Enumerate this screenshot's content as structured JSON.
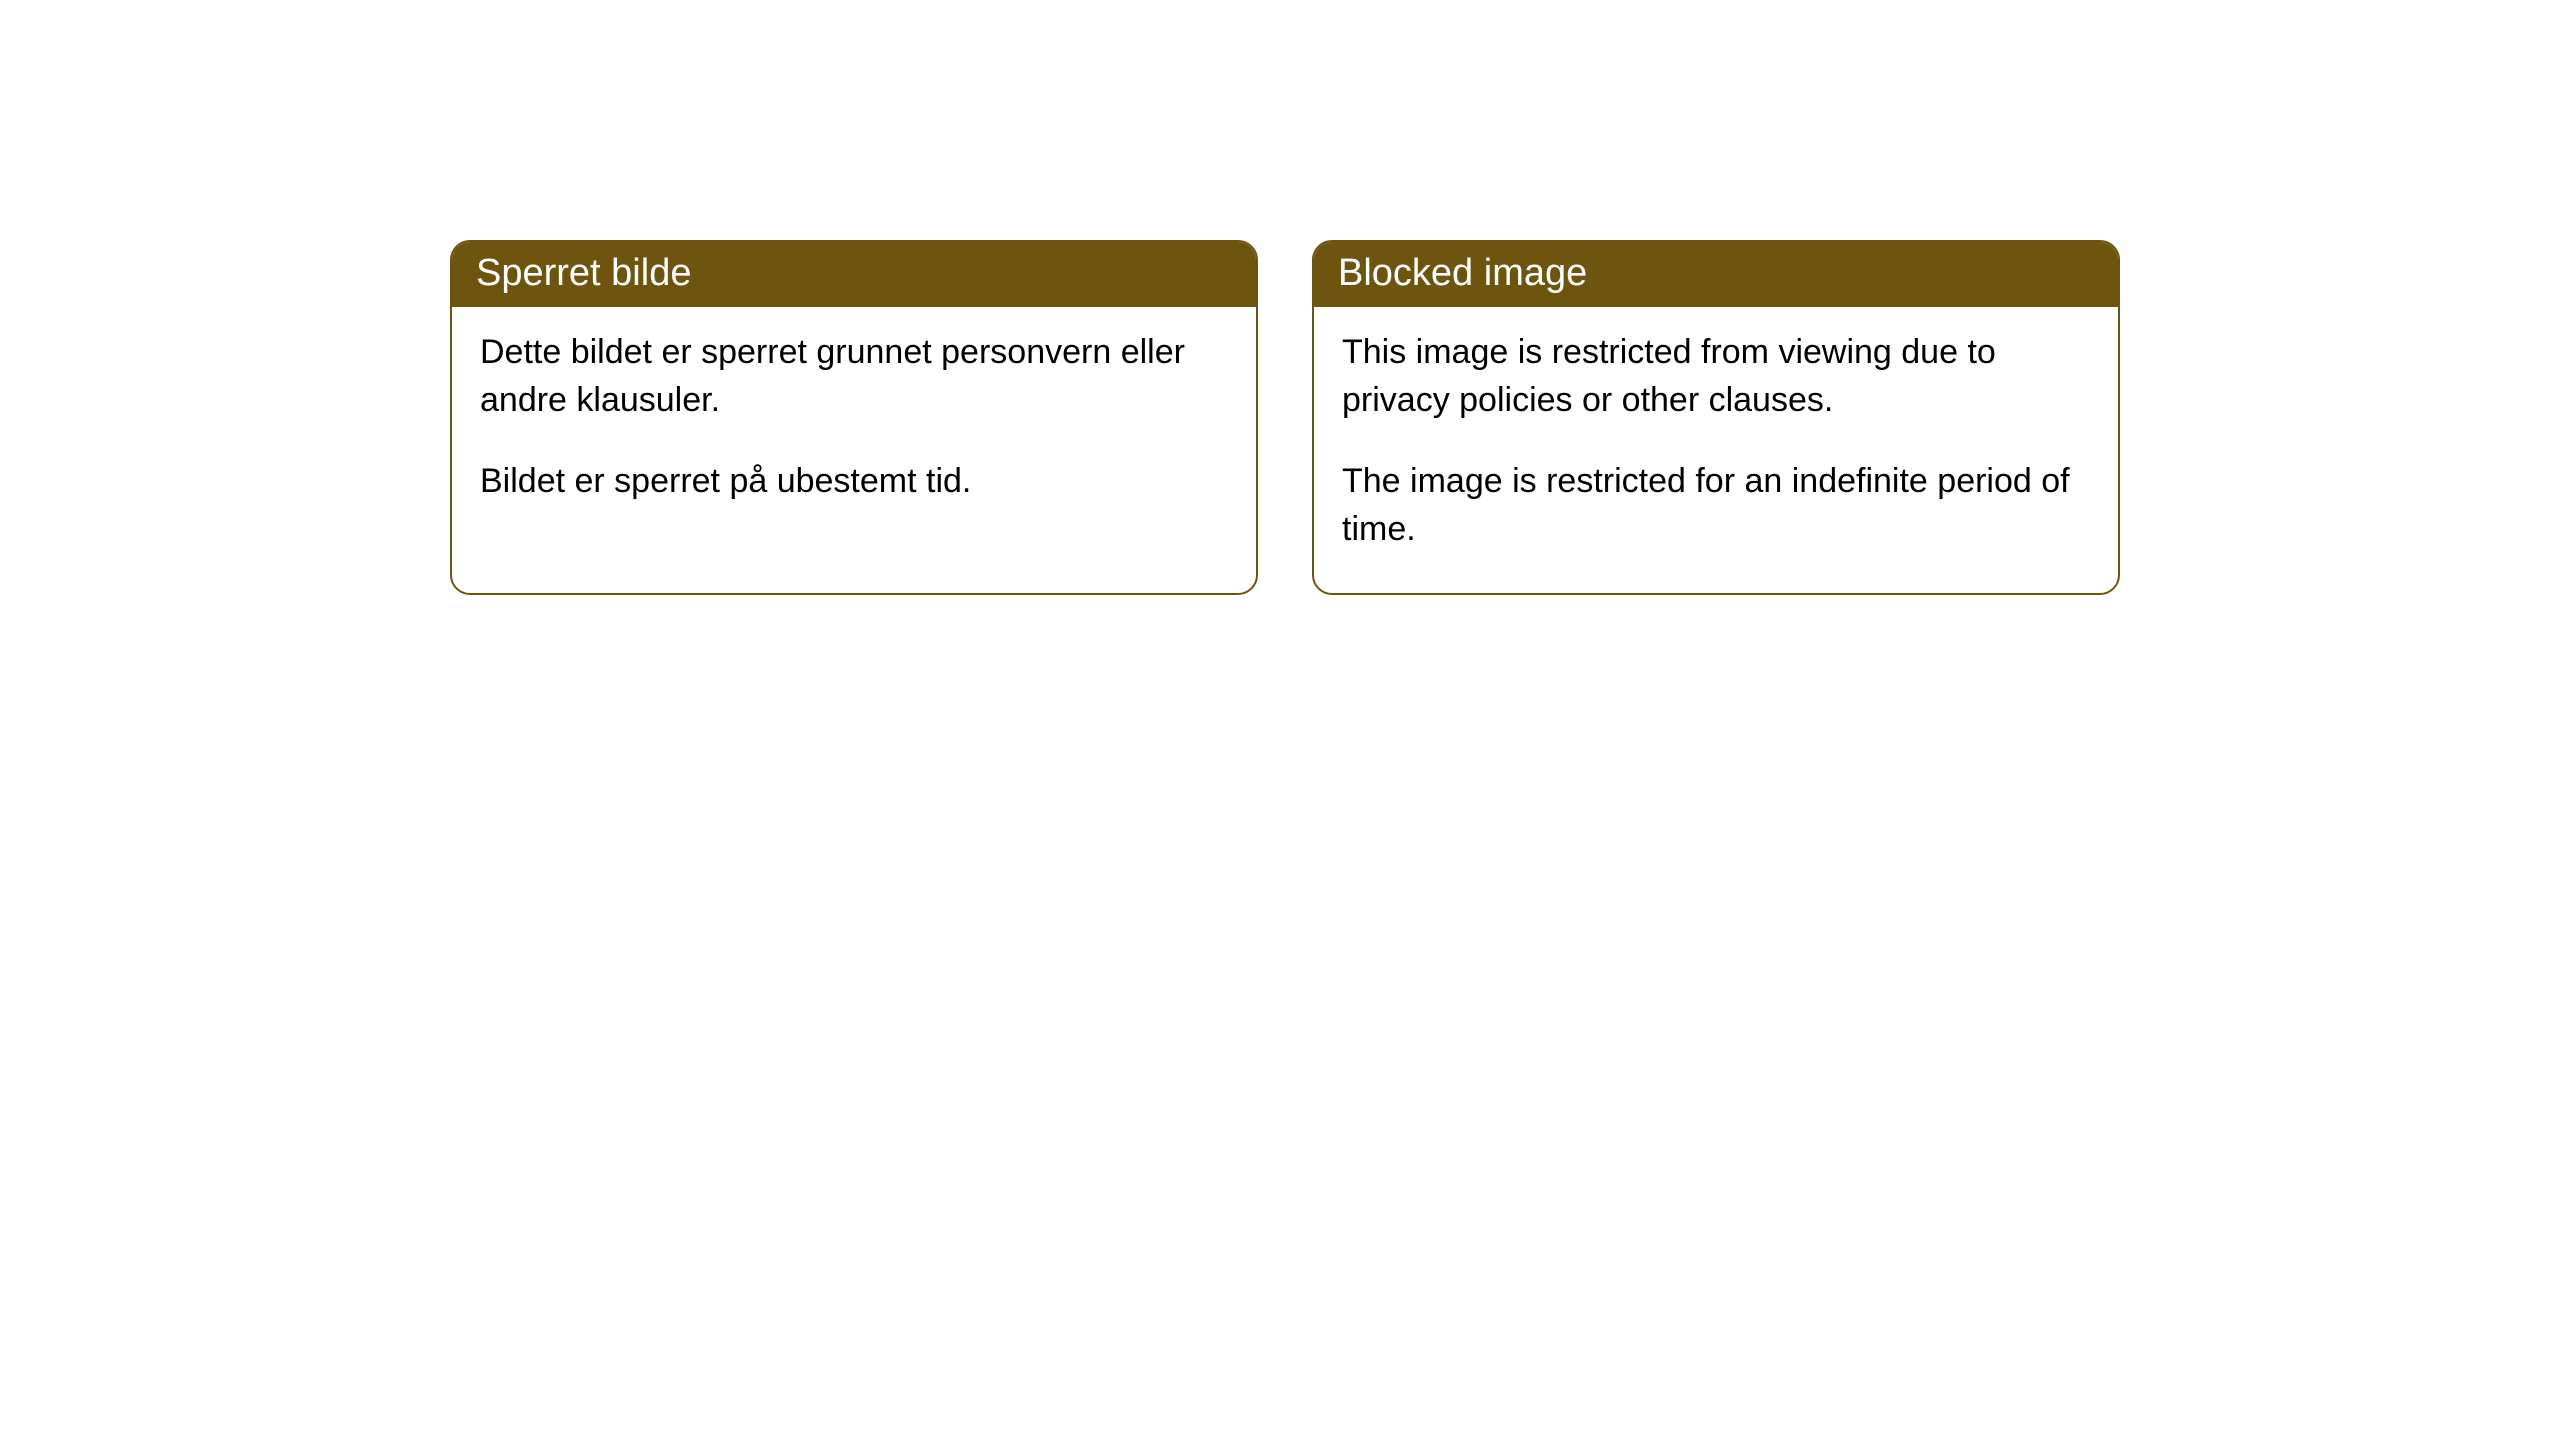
{
  "cards": [
    {
      "title": "Sperret bilde",
      "paragraph1": "Dette bildet er sperret grunnet personvern eller andre klausuler.",
      "paragraph2": "Bildet er sperret på ubestemt tid."
    },
    {
      "title": "Blocked image",
      "paragraph1": "This image is restricted from viewing due to privacy policies or other clauses.",
      "paragraph2": "The image is restricted for an indefinite period of time."
    }
  ],
  "styling": {
    "header_background": "#6d540f",
    "header_text_color": "#ffffff",
    "border_color": "#6d540f",
    "body_background": "#ffffff",
    "body_text_color": "#000000",
    "border_radius": 20,
    "header_fontsize": 38,
    "body_fontsize": 34
  }
}
